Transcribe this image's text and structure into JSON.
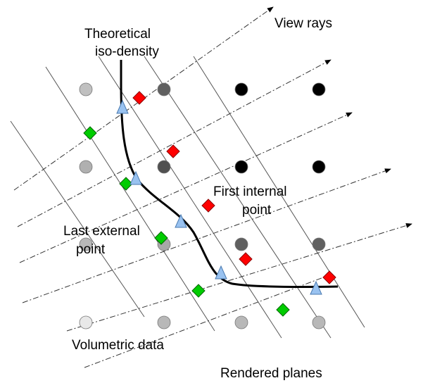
{
  "labels": {
    "view_rays": "View rays",
    "iso_density_line1": "Theoretical",
    "iso_density_line2": "iso-density",
    "first_internal_line1": "First internal",
    "first_internal_line2": "point",
    "last_external_line1": "Last external",
    "last_external_line2": "point",
    "volumetric_data": "Volumetric data",
    "rendered_planes": "Rendered planes"
  },
  "colors": {
    "first_internal_marker": "#ff0000",
    "last_external_marker": "#00cc00",
    "intersection_marker": "#99c2f0",
    "isosurface_curve": "#000000",
    "plane_line": "#555555",
    "ray_line": "#333333"
  },
  "voxel_grid": {
    "columns": 4,
    "rows": 4,
    "shades": [
      [
        "#c0c0c0",
        "#606060",
        "#000000",
        "#000000"
      ],
      [
        "#b0b0b0",
        "#505050",
        "#000000",
        "#000000"
      ],
      [
        "#b8b8b8",
        "#a8a8a8",
        "#606060",
        "#606060"
      ],
      [
        "#e8e8e8",
        "#b8b8b8",
        "#b8b8b8",
        "#b8b8b8"
      ]
    ]
  }
}
